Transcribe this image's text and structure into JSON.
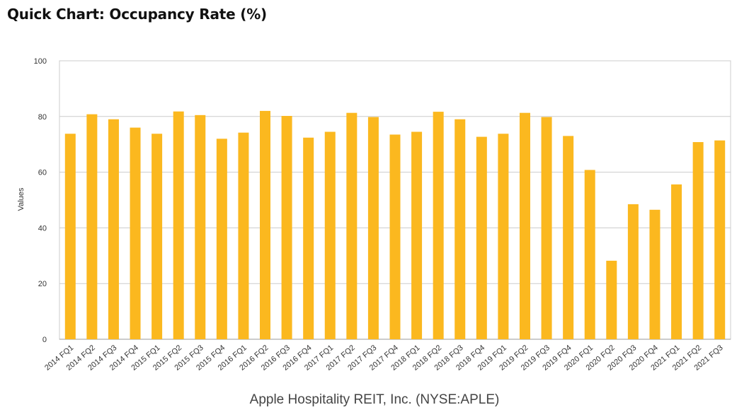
{
  "chart_data": {
    "type": "bar",
    "title": "Quick Chart: Occupancy Rate (%)",
    "subtitle": "Apple Hospitality REIT, Inc. (NYSE:APLE)",
    "xlabel": "",
    "ylabel": "Values",
    "ylim": [
      0,
      100
    ],
    "yticks": [
      0,
      20,
      40,
      60,
      80,
      100
    ],
    "grid": true,
    "bar_color": "#FBB81F",
    "grid_color": "#cccccc",
    "categories": [
      "2014 FQ1",
      "2014 FQ2",
      "2014 FQ3",
      "2014 FQ4",
      "2015 FQ1",
      "2015 FQ2",
      "2015 FQ3",
      "2015 FQ4",
      "2016 FQ1",
      "2016 FQ2",
      "2016 FQ3",
      "2016 FQ4",
      "2017 FQ1",
      "2017 FQ2",
      "2017 FQ3",
      "2017 FQ4",
      "2018 FQ1",
      "2018 FQ2",
      "2018 FQ3",
      "2018 FQ4",
      "2019 FQ1",
      "2019 FQ2",
      "2019 FQ3",
      "2019 FQ4",
      "2020 FQ1",
      "2020 FQ2",
      "2020 FQ3",
      "2020 FQ4",
      "2021 FQ1",
      "2021 FQ2",
      "2021 FQ3"
    ],
    "values": [
      73.8,
      80.8,
      79.0,
      76.0,
      73.8,
      81.8,
      80.5,
      72.0,
      74.2,
      82.0,
      80.2,
      72.4,
      74.5,
      81.3,
      79.8,
      73.5,
      74.5,
      81.7,
      79.0,
      72.7,
      73.8,
      81.3,
      79.8,
      73.0,
      60.8,
      28.2,
      48.5,
      46.5,
      55.6,
      70.8,
      71.4
    ]
  }
}
